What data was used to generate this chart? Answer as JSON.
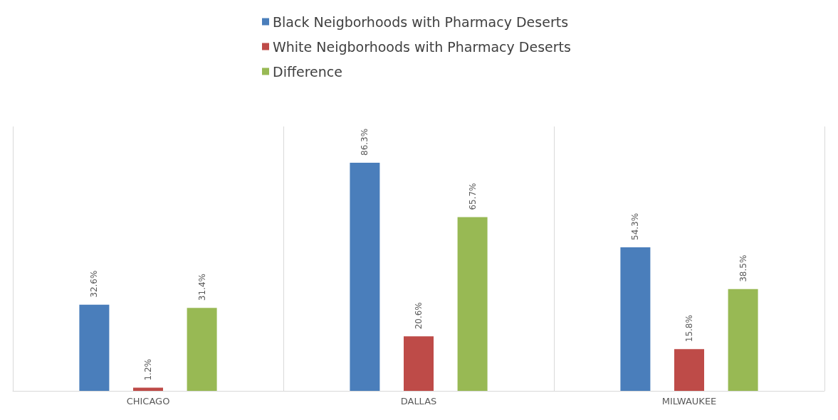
{
  "chart_data": {
    "type": "bar",
    "categories": [
      "CHICAGO",
      "DALLAS",
      "MILWAUKEE"
    ],
    "series": [
      {
        "name": "Black Neigborhoods with Pharmacy Deserts",
        "color": "#4a7ebb",
        "values": [
          32.6,
          86.3,
          54.3
        ],
        "value_labels": [
          "32.6%",
          "86.3%",
          "54.3%"
        ]
      },
      {
        "name": "White Neigborhoods with Pharmacy Deserts",
        "color": "#be4b48",
        "values": [
          1.2,
          20.6,
          15.8
        ],
        "value_labels": [
          "1.2%",
          "20.6%",
          "15.8%"
        ]
      },
      {
        "name": "Difference",
        "color": "#98b954",
        "values": [
          31.4,
          65.7,
          38.5
        ],
        "value_labels": [
          "31.4%",
          "65.7%",
          "38.5%"
        ]
      }
    ],
    "legend": "top",
    "grid": "x",
    "tick_labels": "x"
  }
}
